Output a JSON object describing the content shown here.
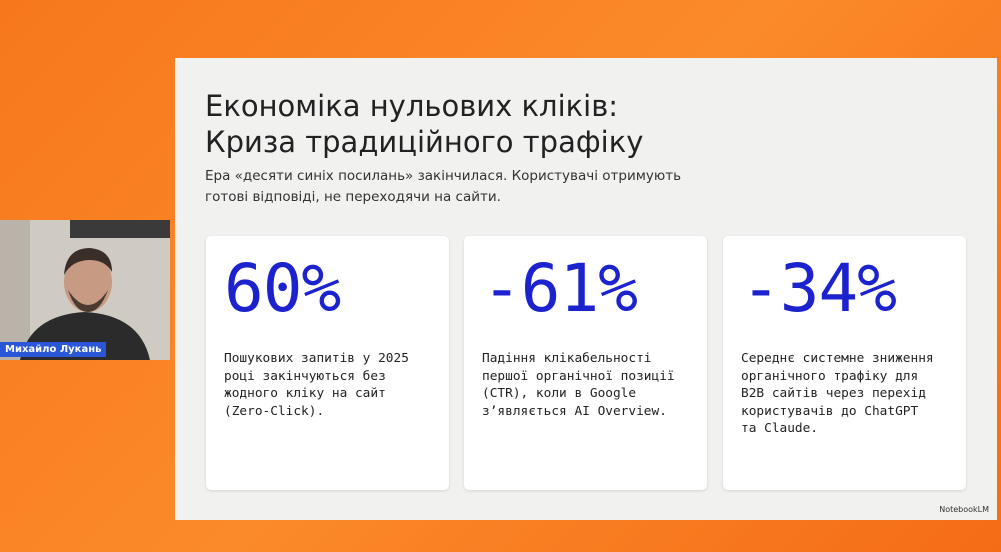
{
  "speaker": {
    "name": "Михайло Лукань"
  },
  "slide": {
    "title_lines": [
      "Економіка нульових кліків:",
      "Криза традиційного трафіку"
    ],
    "subtitle_lines": [
      "Ера «десяти синіх посилань» закінчилася. Користувачі отримують",
      "готові відповіді, не переходячи на сайти."
    ],
    "cards": [
      {
        "stat": "60%",
        "lines": [
          "Пошукових запитів у 2025",
          "році закінчуються без",
          "жодного кліку на сайт",
          "(Zero-Click)."
        ]
      },
      {
        "stat": "-61%",
        "lines": [
          "Падіння клікабельності",
          "першої органічної позиції",
          "(CTR), коли в Google",
          "з’являється AI Overview."
        ]
      },
      {
        "stat": "-34%",
        "lines": [
          "Середнє системне зниження",
          "органічного трафіку для",
          "B2B сайтів через перехід",
          "користувачів до ChatGPT",
          "та Claude."
        ]
      }
    ],
    "watermark": "NotebookLM"
  }
}
